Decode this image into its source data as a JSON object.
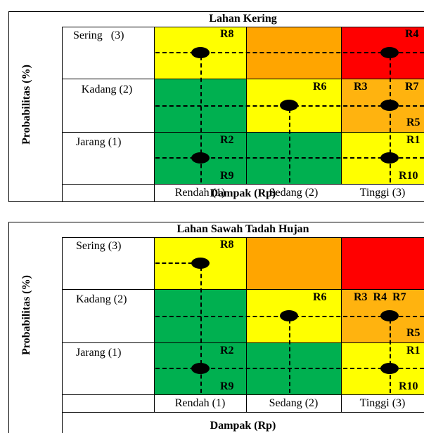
{
  "colors": {
    "yellow": "#ffff00",
    "orange": "#ffa500",
    "red": "#ff0000",
    "green": "#00b050",
    "light_orange": "#ffb30f"
  },
  "panels": [
    {
      "title": "Lahan Kering",
      "ylabel": "Probabilitas (%)",
      "xlabel": "Dampak (Rp)",
      "rows": [
        "Sering   (3)",
        "Kadang (2)",
        "Jarang (1)"
      ],
      "cols": [
        "Rendah (1)",
        "Sedang (2)",
        "Tinggi (3)"
      ],
      "tags": {
        "r3c1": "R8",
        "r3c3": "R4",
        "r2c2": "R6",
        "r2c3a": "R3",
        "r2c3b": "R7",
        "r2c3c": "R5",
        "r1c1a": "R2",
        "r1c1b": "R9",
        "r1c3a": "R1",
        "r1c3b": "R10"
      }
    },
    {
      "title": "Lahan Sawah Tadah Hujan",
      "ylabel": "Probabilitas (%)",
      "xlabel": "Dampak (Rp)",
      "rows": [
        "Sering (3)",
        "Kadang (2)",
        "Jarang (1)"
      ],
      "cols": [
        "Rendah (1)",
        "Sedang (2)",
        "Tinggi (3)"
      ],
      "tags": {
        "r3c1": "R8",
        "r2c2": "R6",
        "r2c3a": "R3  R4  R7",
        "r2c3c": "R5",
        "r1c1a": "R2",
        "r1c1b": "R9",
        "r1c3a": "R1",
        "r1c3b": "R10"
      }
    }
  ]
}
